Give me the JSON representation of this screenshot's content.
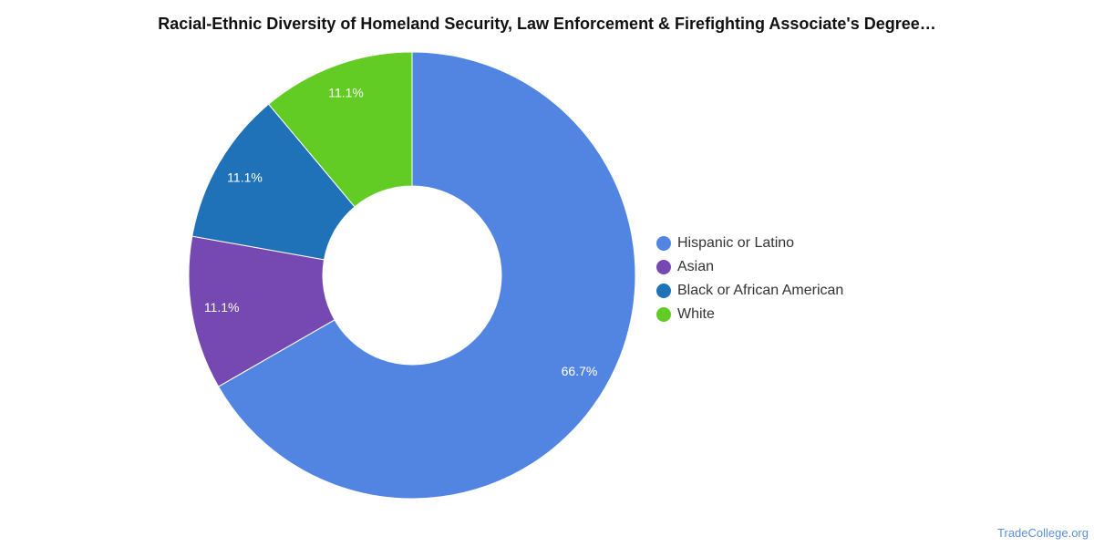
{
  "chart_data": {
    "type": "pie",
    "title": "Racial-Ethnic Diversity of Homeland Security, Law Enforcement & Firefighting Associate's Degree…",
    "categories": [
      "Hispanic or Latino",
      "Asian",
      "Black or African American",
      "White"
    ],
    "values": [
      66.7,
      11.1,
      11.1,
      11.1
    ],
    "labels": [
      "66.7%",
      "11.1%",
      "11.1%",
      "11.1%"
    ],
    "colors": [
      "#5285e2",
      "#7549b1",
      "#1f72b8",
      "#62cc24"
    ],
    "donut": true,
    "legend_position": "right"
  },
  "watermark": "TradeCollege.org"
}
